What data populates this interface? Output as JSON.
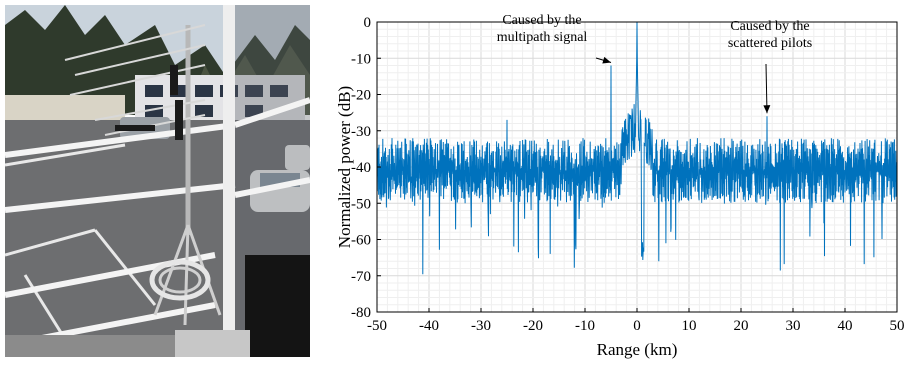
{
  "photo": {
    "description_icon": "antenna-photo"
  },
  "chart_data": {
    "type": "line",
    "title": "",
    "xlabel": "Range (km)",
    "ylabel": "Normalized power (dB)",
    "xlim": [
      -50,
      50
    ],
    "ylim": [
      -80,
      0
    ],
    "xticks": [
      -50,
      -40,
      -30,
      -20,
      -10,
      0,
      10,
      20,
      30,
      40,
      50
    ],
    "yticks": [
      0,
      -10,
      -20,
      -30,
      -40,
      -50,
      -60,
      -70,
      -80
    ],
    "grid": true,
    "series": [
      {
        "name": "",
        "color": "#0072BD",
        "noise_floor_mean": -41,
        "peaks": [
          {
            "x": 0,
            "y": 0
          },
          {
            "x": -5,
            "y": -12
          },
          {
            "x": 25,
            "y": -26
          },
          {
            "x": -25,
            "y": -27
          }
        ]
      }
    ],
    "annotations": [
      {
        "id": "multipath",
        "lines": [
          "Caused by the",
          "multipath signal"
        ],
        "target": {
          "x": -5,
          "y": -12
        }
      },
      {
        "id": "pilots",
        "lines": [
          "Caused by the",
          "scattered pilots"
        ],
        "target": {
          "x": 25,
          "y": -26
        }
      }
    ]
  }
}
